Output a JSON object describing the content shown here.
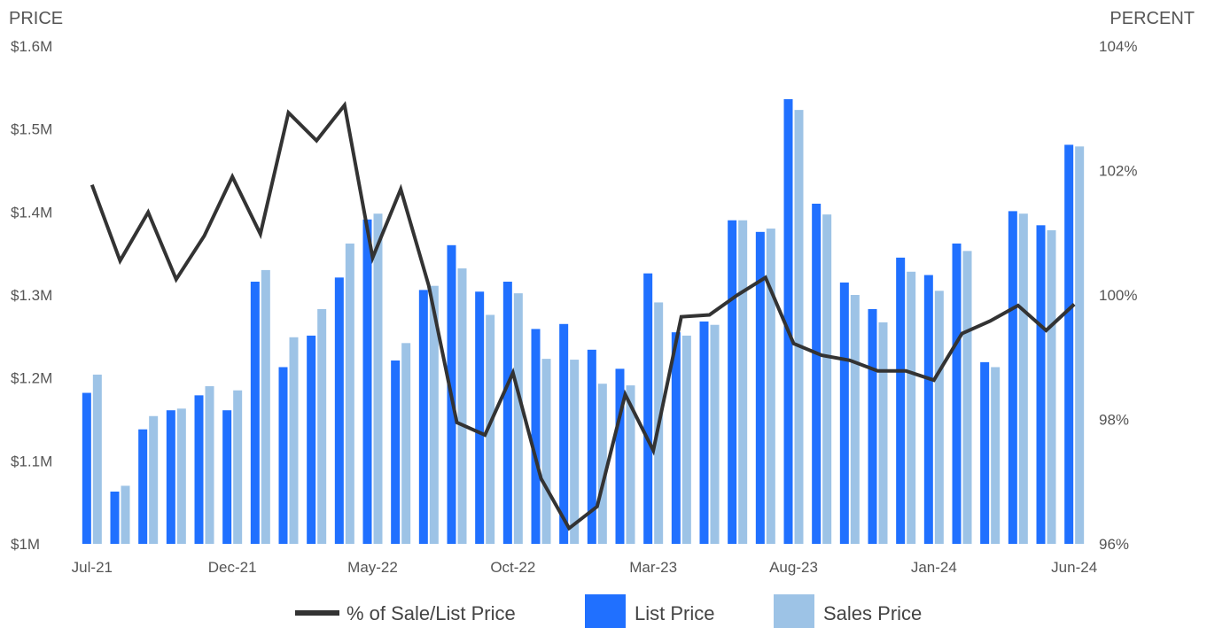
{
  "chart_data": {
    "type": "bar",
    "left_axis_title": "PRICE",
    "right_axis_title": "PERCENT",
    "y_left": {
      "min": 1.0,
      "max": 1.6,
      "ticks": [
        "$1M",
        "$1.1M",
        "$1.2M",
        "$1.3M",
        "$1.4M",
        "$1.5M",
        "$1.6M"
      ]
    },
    "y_right": {
      "min": 96,
      "max": 104,
      "ticks": [
        "96%",
        "98%",
        "100%",
        "102%",
        "104%"
      ]
    },
    "x_tick_labels": [
      "Jul-21",
      "Dec-21",
      "May-22",
      "Oct-22",
      "Mar-23",
      "Aug-23",
      "Jan-24",
      "Jun-24"
    ],
    "x_tick_indices": [
      0,
      5,
      10,
      15,
      20,
      25,
      30,
      35
    ],
    "categories": [
      "Jul-21",
      "Aug-21",
      "Sep-21",
      "Oct-21",
      "Nov-21",
      "Dec-21",
      "Jan-22",
      "Feb-22",
      "Mar-22",
      "Apr-22",
      "May-22",
      "Jun-22",
      "Jul-22",
      "Aug-22",
      "Sep-22",
      "Oct-22",
      "Nov-22",
      "Dec-22",
      "Jan-23",
      "Feb-23",
      "Mar-23",
      "Apr-23",
      "May-23",
      "Jun-23",
      "Jul-23",
      "Aug-23",
      "Sep-23",
      "Oct-23",
      "Nov-23",
      "Dec-23",
      "Jan-24",
      "Feb-24",
      "Mar-24",
      "Apr-24",
      "May-24",
      "Jun-24"
    ],
    "series": [
      {
        "name": "List Price",
        "kind": "bar",
        "axis": "left",
        "color": "#2070ff",
        "values": [
          1.182,
          1.063,
          1.138,
          1.161,
          1.179,
          1.161,
          1.316,
          1.213,
          1.251,
          1.321,
          1.391,
          1.221,
          1.306,
          1.36,
          1.304,
          1.316,
          1.259,
          1.265,
          1.234,
          1.211,
          1.326,
          1.255,
          1.268,
          1.39,
          1.376,
          1.536,
          1.41,
          1.315,
          1.283,
          1.345,
          1.324,
          1.362,
          1.219,
          1.401,
          1.384,
          1.481
        ]
      },
      {
        "name": "Sales Price",
        "kind": "bar",
        "axis": "left",
        "color": "#9dc3e6",
        "values": [
          1.204,
          1.07,
          1.154,
          1.163,
          1.19,
          1.185,
          1.33,
          1.249,
          1.283,
          1.362,
          1.398,
          1.242,
          1.311,
          1.332,
          1.276,
          1.302,
          1.223,
          1.222,
          1.193,
          1.191,
          1.291,
          1.251,
          1.264,
          1.39,
          1.38,
          1.523,
          1.397,
          1.3,
          1.267,
          1.328,
          1.305,
          1.353,
          1.213,
          1.398,
          1.378,
          1.479
        ]
      },
      {
        "name": "% of Sale/List Price",
        "kind": "line",
        "axis": "right",
        "color": "#333333",
        "values": [
          101.77,
          100.55,
          101.33,
          100.25,
          100.95,
          101.9,
          100.98,
          102.93,
          102.48,
          103.05,
          100.6,
          101.7,
          100.15,
          97.95,
          97.75,
          98.75,
          97.05,
          96.25,
          96.6,
          98.4,
          97.5,
          99.65,
          99.68,
          100.0,
          100.28,
          99.22,
          99.03,
          98.95,
          98.78,
          98.78,
          98.63,
          99.38,
          99.58,
          99.83,
          99.43,
          99.85
        ]
      }
    ],
    "legend": [
      {
        "label": "% of Sale/List Price",
        "symbol": "line",
        "color": "#333333"
      },
      {
        "label": "List Price",
        "symbol": "box",
        "color": "#2070ff"
      },
      {
        "label": "Sales Price",
        "symbol": "box",
        "color": "#9dc3e6"
      }
    ],
    "legend_position": "bottom",
    "grid": false
  }
}
